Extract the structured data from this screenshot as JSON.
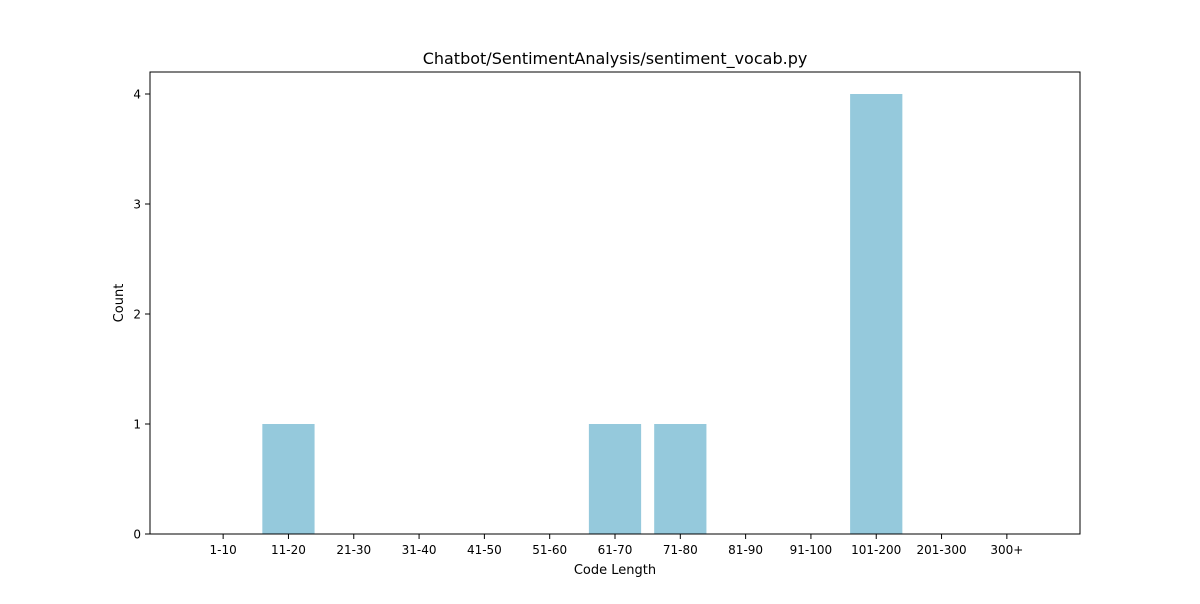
{
  "chart_data": {
    "type": "bar",
    "title": "Chatbot/SentimentAnalysis/sentiment_vocab.py",
    "xlabel": "Code Length",
    "ylabel": "Count",
    "categories": [
      "1-10",
      "11-20",
      "21-30",
      "31-40",
      "41-50",
      "51-60",
      "61-70",
      "71-80",
      "81-90",
      "91-100",
      "101-200",
      "201-300",
      "300+"
    ],
    "values": [
      0,
      1,
      0,
      0,
      0,
      0,
      1,
      1,
      0,
      0,
      4,
      0,
      0
    ],
    "ylim": [
      0,
      4.2
    ],
    "yticks": [
      0,
      1,
      2,
      3,
      4
    ],
    "grid": false,
    "bar_color": "#95c9dc"
  }
}
